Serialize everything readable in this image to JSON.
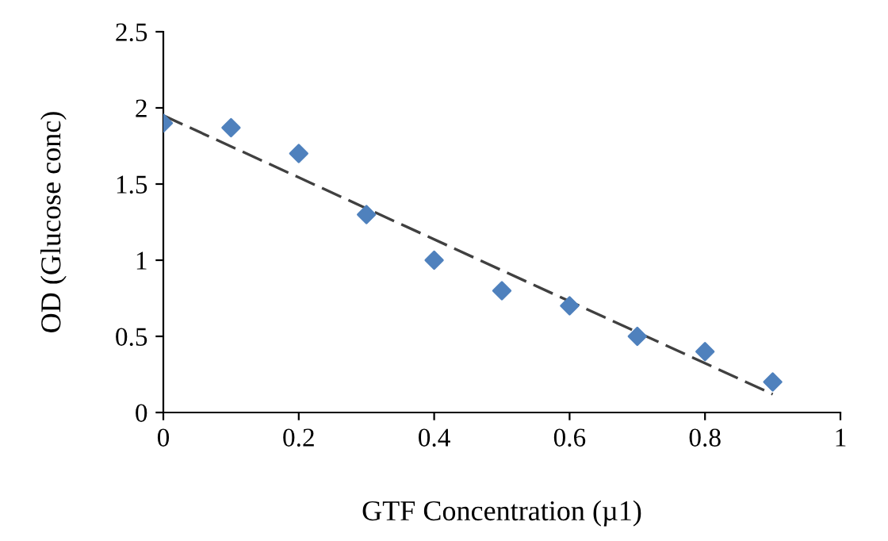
{
  "chart_data": {
    "type": "scatter",
    "xlabel": "GTF Concentration (µ1)",
    "ylabel": "OD (Glucose conc)",
    "x": [
      0,
      0.1,
      0.2,
      0.3,
      0.4,
      0.5,
      0.6,
      0.7,
      0.8,
      0.9
    ],
    "series": [
      {
        "color": "#4f81bd",
        "marker": "diamond",
        "values": [
          1.9,
          1.87,
          1.7,
          1.3,
          1.0,
          0.8,
          0.7,
          0.5,
          0.4,
          0.2
        ]
      },
      {
        "type": "line",
        "color": "#404040",
        "line_style": "dashed",
        "marker": "none",
        "x": [
          0,
          0.9
        ],
        "values": [
          1.95,
          0.12
        ]
      }
    ],
    "xlim": [
      0,
      1
    ],
    "xticks": [
      0,
      0.2,
      0.4,
      0.6,
      0.8,
      1
    ],
    "ylim": [
      0,
      2.5
    ],
    "yticks": [
      0,
      0.5,
      1,
      1.5,
      2,
      2.5
    ],
    "grid": false,
    "legend": false
  }
}
